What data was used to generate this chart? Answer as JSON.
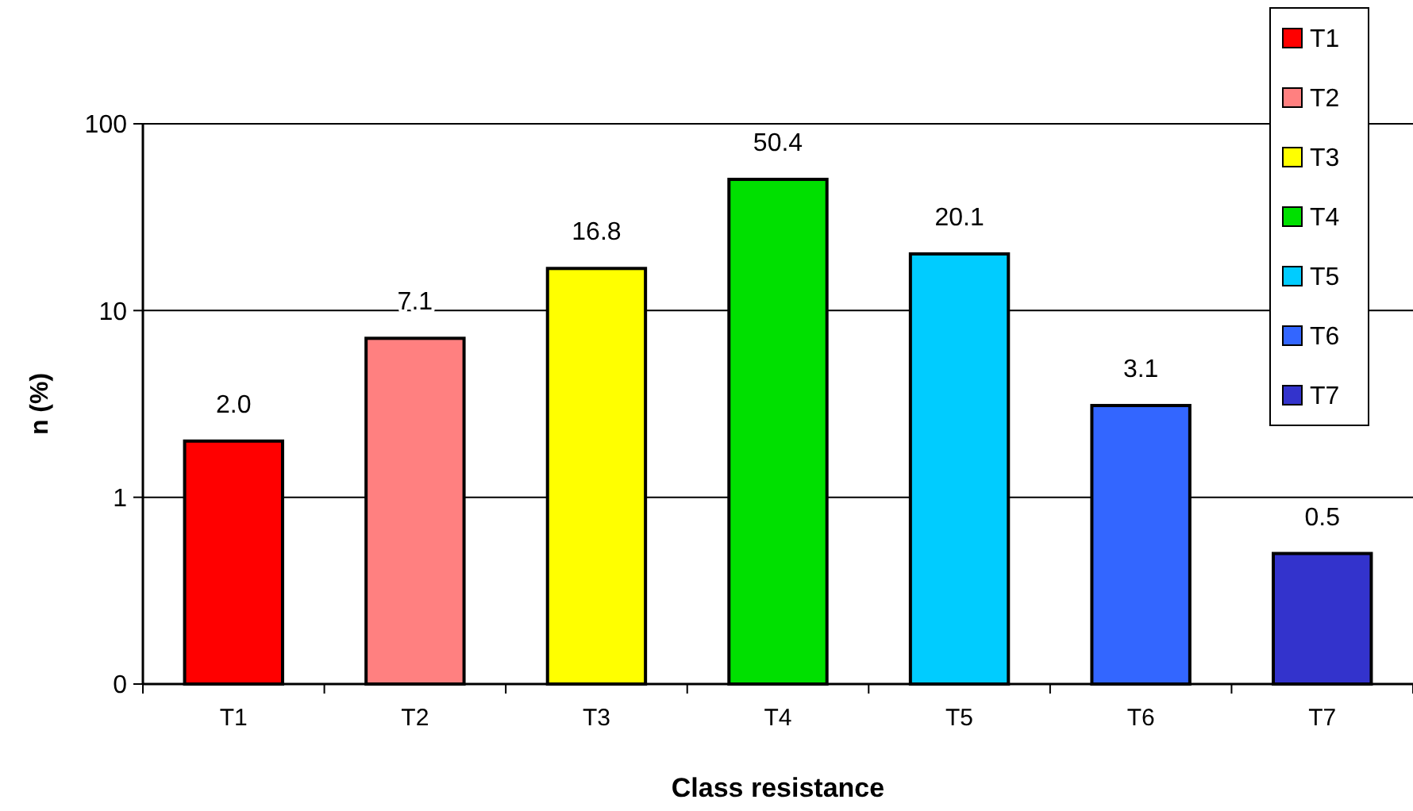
{
  "chart_data": {
    "type": "bar",
    "xlabel": "Class resistance",
    "ylabel": "n (%)",
    "categories": [
      "T1",
      "T2",
      "T3",
      "T4",
      "T5",
      "T6",
      "T7"
    ],
    "series": [
      {
        "name": "T1",
        "color": "#ff0000",
        "values": [
          2.0,
          null,
          null,
          null,
          null,
          null,
          null
        ],
        "value_labels": [
          "2.0",
          null,
          null,
          null,
          null,
          null,
          null
        ]
      },
      {
        "name": "T2",
        "color": "#ff8080",
        "values": [
          null,
          7.1,
          null,
          null,
          null,
          null,
          null
        ],
        "value_labels": [
          null,
          "7.1",
          null,
          null,
          null,
          null,
          null
        ]
      },
      {
        "name": "T3",
        "color": "#ffff00",
        "values": [
          null,
          null,
          16.8,
          null,
          null,
          null,
          null
        ],
        "value_labels": [
          null,
          null,
          "16.8",
          null,
          null,
          null,
          null
        ]
      },
      {
        "name": "T4",
        "color": "#00e000",
        "values": [
          null,
          null,
          null,
          50.4,
          null,
          null,
          null
        ],
        "value_labels": [
          null,
          null,
          null,
          "50.4",
          null,
          null,
          null
        ]
      },
      {
        "name": "T5",
        "color": "#00ccff",
        "values": [
          null,
          null,
          null,
          null,
          20.1,
          null,
          null
        ],
        "value_labels": [
          null,
          null,
          null,
          null,
          "20.1",
          null,
          null
        ]
      },
      {
        "name": "T6",
        "color": "#3366ff",
        "values": [
          null,
          null,
          null,
          null,
          null,
          3.1,
          null
        ],
        "value_labels": [
          null,
          null,
          null,
          null,
          null,
          "3.1",
          null
        ]
      },
      {
        "name": "T7",
        "color": "#3333cc",
        "values": [
          null,
          null,
          null,
          null,
          null,
          null,
          0.5
        ],
        "value_labels": [
          null,
          null,
          null,
          null,
          null,
          null,
          "0.5"
        ]
      }
    ],
    "log": true,
    "ylim": [
      0.1,
      100
    ],
    "yticks": [
      {
        "value": 0.1,
        "label": "0"
      },
      1,
      10,
      100
    ],
    "grid": "y",
    "legend": "top right"
  }
}
